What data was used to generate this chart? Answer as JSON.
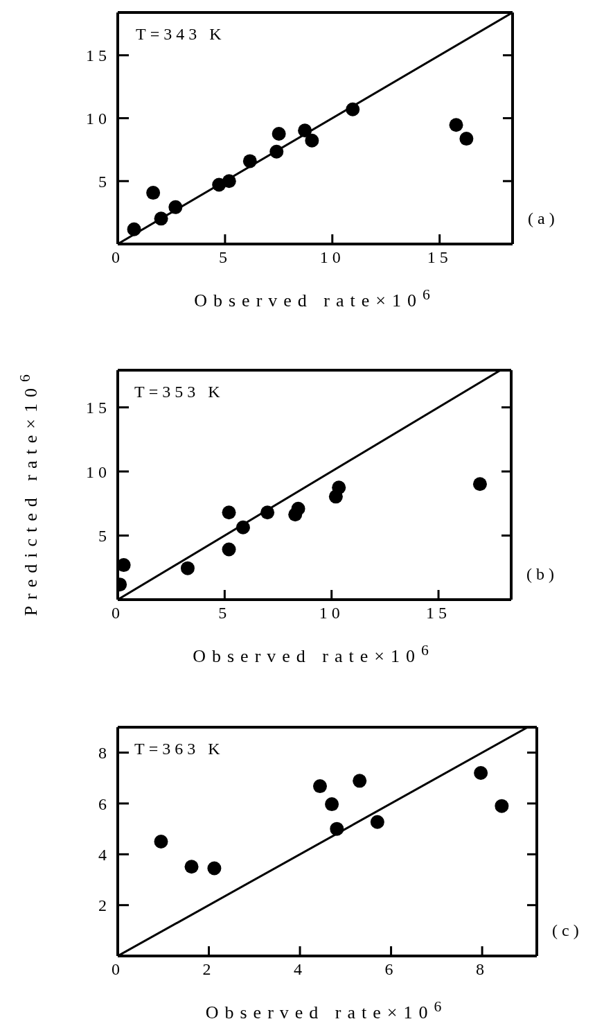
{
  "chart_data": [
    {
      "type": "scatter",
      "xlabel": "Observed rate×10$^{6}$",
      "annotations": [
        "T=343 K",
        "(a)"
      ],
      "xlim": [
        0,
        18.4
      ],
      "ylim": [
        0,
        18.4
      ],
      "xticks": [
        0,
        5,
        10,
        15
      ],
      "yticks": [
        5,
        10,
        15
      ],
      "series": [
        {
          "marker": "circle",
          "color": "#000000",
          "x": [
            0.76,
            1.65,
            2.02,
            2.69,
            4.72,
            5.19,
            6.16,
            7.4,
            7.51,
            8.72,
            9.05,
            10.95,
            15.77,
            16.25
          ],
          "values": [
            1.17,
            4.07,
            2.02,
            2.93,
            4.71,
            5.0,
            6.59,
            7.34,
            8.76,
            9.02,
            8.22,
            10.7,
            9.46,
            8.37
          ]
        },
        {
          "type": "line",
          "marker": "none",
          "color": "#000000",
          "x": [
            0,
            18.4
          ],
          "values": [
            0,
            18.4
          ]
        }
      ]
    },
    {
      "type": "scatter",
      "xlabel": "Observed rate×10$^{6}$",
      "ylabel": "Predicted rate×10$^{6}$",
      "annotations": [
        "T=353 K",
        "(b)"
      ],
      "xlim": [
        0,
        18.4
      ],
      "ylim": [
        0,
        17.9
      ],
      "xticks": [
        0,
        5,
        10,
        15
      ],
      "yticks": [
        5,
        10,
        15
      ],
      "series": [
        {
          "marker": "circle",
          "color": "#000000",
          "x": [
            0.1,
            0.28,
            3.27,
            5.2,
            5.2,
            5.86,
            7.0,
            8.3,
            8.44,
            10.2,
            10.34,
            16.94
          ],
          "values": [
            1.18,
            2.7,
            2.45,
            6.8,
            3.92,
            5.64,
            6.8,
            6.64,
            7.1,
            8.04,
            8.75,
            9.02
          ]
        },
        {
          "type": "line",
          "marker": "none",
          "color": "#000000",
          "x": [
            0,
            17.9
          ],
          "values": [
            0,
            17.9
          ]
        }
      ]
    },
    {
      "type": "scatter",
      "xlabel": "Observed rate×10$^{6}$",
      "annotations": [
        "T=363 K",
        "(c)"
      ],
      "xlim": [
        0,
        9.2
      ],
      "ylim": [
        0,
        9
      ],
      "xticks": [
        0,
        2,
        4,
        6,
        8
      ],
      "yticks": [
        2,
        4,
        6,
        8
      ],
      "series": [
        {
          "marker": "circle",
          "color": "#000000",
          "x": [
            0.95,
            1.62,
            2.12,
            4.44,
            4.7,
            4.81,
            5.31,
            5.7,
            7.97,
            8.43
          ],
          "values": [
            4.5,
            3.51,
            3.45,
            6.68,
            5.97,
            5.0,
            6.89,
            5.27,
            7.2,
            5.9
          ]
        },
        {
          "type": "line",
          "marker": "none",
          "color": "#000000",
          "x": [
            0,
            9
          ],
          "values": [
            0,
            9
          ]
        }
      ]
    }
  ]
}
